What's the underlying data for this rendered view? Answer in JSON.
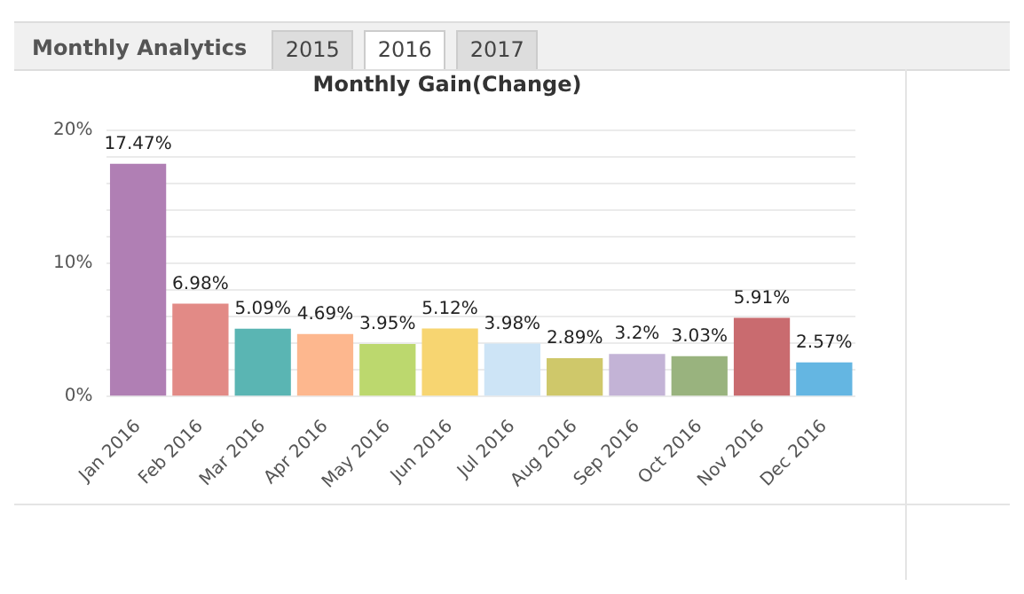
{
  "chart_data": {
    "type": "bar",
    "title": "Monthly Gain(Change)",
    "annotations": [
      "Monthly Analytics",
      "2015",
      "2016",
      "2017"
    ],
    "categories": [
      "Jan 2016",
      "Feb 2016",
      "Mar 2016",
      "Apr 2016",
      "May 2016",
      "Jun 2016",
      "Jul 2016",
      "Aug 2016",
      "Sep 2016",
      "Oct 2016",
      "Nov 2016",
      "Dec 2016"
    ],
    "values": [
      17.47,
      6.98,
      5.09,
      4.69,
      3.95,
      5.12,
      3.98,
      2.89,
      3.2,
      3.03,
      5.91,
      2.57
    ],
    "value_labels": [
      "17.47%",
      "6.98%",
      "5.09%",
      "4.69%",
      "3.95%",
      "5.12%",
      "3.98%",
      "2.89%",
      "3.2%",
      "3.03%",
      "5.91%",
      "2.57%"
    ],
    "colors": [
      "#b07fb4",
      "#e28a86",
      "#5ab5b3",
      "#fdb78e",
      "#bcd86e",
      "#f7d571",
      "#cde4f6",
      "#cfc86a",
      "#c3b3d6",
      "#99b37e",
      "#c96b6f",
      "#64b6e2"
    ],
    "ylim": [
      0,
      20
    ],
    "yticks": [
      {
        "value": 0,
        "label": "0%"
      },
      {
        "value": 2,
        "label": null
      },
      {
        "value": 4,
        "label": null
      },
      {
        "value": 6,
        "label": null
      },
      {
        "value": 8,
        "label": null
      },
      {
        "value": 10,
        "label": "10%"
      },
      {
        "value": 12,
        "label": null
      },
      {
        "value": 14,
        "label": null
      },
      {
        "value": 16,
        "label": null
      },
      {
        "value": 18,
        "label": null
      },
      {
        "value": 20,
        "label": "20%"
      }
    ],
    "grid": "y",
    "legend": false
  }
}
